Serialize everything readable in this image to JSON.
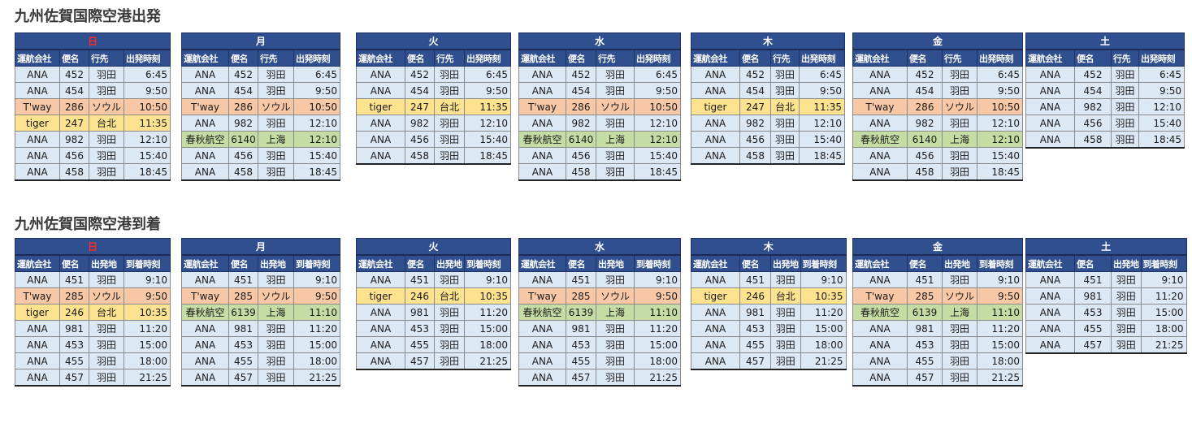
{
  "departures": {
    "title": "九州佐賀国際空港出発",
    "headers": [
      "運航会社",
      "便名",
      "行先",
      "出発時刻"
    ],
    "days": [
      {
        "day": "日",
        "sunday": true,
        "rows": [
          {
            "airline": "ANA",
            "flight": "452",
            "place": "羽田",
            "time": "6:45",
            "color": ""
          },
          {
            "airline": "ANA",
            "flight": "454",
            "place": "羽田",
            "time": "9:50",
            "color": ""
          },
          {
            "airline": "T'way",
            "flight": "286",
            "place": "ソウル",
            "time": "10:50",
            "color": "orange"
          },
          {
            "airline": "tiger",
            "flight": "247",
            "place": "台北",
            "time": "11:35",
            "color": "yellow"
          },
          {
            "airline": "ANA",
            "flight": "982",
            "place": "羽田",
            "time": "12:10",
            "color": ""
          },
          {
            "airline": "ANA",
            "flight": "456",
            "place": "羽田",
            "time": "15:40",
            "color": ""
          },
          {
            "airline": "ANA",
            "flight": "458",
            "place": "羽田",
            "time": "18:45",
            "color": ""
          }
        ]
      },
      {
        "day": "月",
        "rows": [
          {
            "airline": "ANA",
            "flight": "452",
            "place": "羽田",
            "time": "6:45",
            "color": ""
          },
          {
            "airline": "ANA",
            "flight": "454",
            "place": "羽田",
            "time": "9:50",
            "color": ""
          },
          {
            "airline": "T'way",
            "flight": "286",
            "place": "ソウル",
            "time": "10:50",
            "color": "orange"
          },
          {
            "airline": "ANA",
            "flight": "982",
            "place": "羽田",
            "time": "12:10",
            "color": ""
          },
          {
            "airline": "春秋航空",
            "flight": "6140",
            "place": "上海",
            "time": "12:10",
            "color": "green"
          },
          {
            "airline": "ANA",
            "flight": "456",
            "place": "羽田",
            "time": "15:40",
            "color": ""
          },
          {
            "airline": "ANA",
            "flight": "458",
            "place": "羽田",
            "time": "18:45",
            "color": ""
          }
        ]
      },
      {
        "day": "火",
        "rows": [
          {
            "airline": "ANA",
            "flight": "452",
            "place": "羽田",
            "time": "6:45",
            "color": ""
          },
          {
            "airline": "ANA",
            "flight": "454",
            "place": "羽田",
            "time": "9:50",
            "color": ""
          },
          {
            "airline": "tiger",
            "flight": "247",
            "place": "台北",
            "time": "11:35",
            "color": "yellow"
          },
          {
            "airline": "ANA",
            "flight": "982",
            "place": "羽田",
            "time": "12:10",
            "color": ""
          },
          {
            "airline": "ANA",
            "flight": "456",
            "place": "羽田",
            "time": "15:40",
            "color": ""
          },
          {
            "airline": "ANA",
            "flight": "458",
            "place": "羽田",
            "time": "18:45",
            "color": ""
          }
        ]
      },
      {
        "day": "水",
        "rows": [
          {
            "airline": "ANA",
            "flight": "452",
            "place": "羽田",
            "time": "6:45",
            "color": ""
          },
          {
            "airline": "ANA",
            "flight": "454",
            "place": "羽田",
            "time": "9:50",
            "color": ""
          },
          {
            "airline": "T'way",
            "flight": "286",
            "place": "ソウル",
            "time": "10:50",
            "color": "orange"
          },
          {
            "airline": "ANA",
            "flight": "982",
            "place": "羽田",
            "time": "12:10",
            "color": ""
          },
          {
            "airline": "春秋航空",
            "flight": "6140",
            "place": "上海",
            "time": "12:10",
            "color": "green"
          },
          {
            "airline": "ANA",
            "flight": "456",
            "place": "羽田",
            "time": "15:40",
            "color": ""
          },
          {
            "airline": "ANA",
            "flight": "458",
            "place": "羽田",
            "time": "18:45",
            "color": ""
          }
        ]
      },
      {
        "day": "木",
        "rows": [
          {
            "airline": "ANA",
            "flight": "452",
            "place": "羽田",
            "time": "6:45",
            "color": ""
          },
          {
            "airline": "ANA",
            "flight": "454",
            "place": "羽田",
            "time": "9:50",
            "color": ""
          },
          {
            "airline": "tiger",
            "flight": "247",
            "place": "台北",
            "time": "11:35",
            "color": "yellow"
          },
          {
            "airline": "ANA",
            "flight": "982",
            "place": "羽田",
            "time": "12:10",
            "color": ""
          },
          {
            "airline": "ANA",
            "flight": "456",
            "place": "羽田",
            "time": "15:40",
            "color": ""
          },
          {
            "airline": "ANA",
            "flight": "458",
            "place": "羽田",
            "time": "18:45",
            "color": ""
          }
        ]
      },
      {
        "day": "金",
        "rows": [
          {
            "airline": "ANA",
            "flight": "452",
            "place": "羽田",
            "time": "6:45",
            "color": ""
          },
          {
            "airline": "ANA",
            "flight": "454",
            "place": "羽田",
            "time": "9:50",
            "color": ""
          },
          {
            "airline": "T'way",
            "flight": "286",
            "place": "ソウル",
            "time": "10:50",
            "color": "orange"
          },
          {
            "airline": "ANA",
            "flight": "982",
            "place": "羽田",
            "time": "12:10",
            "color": ""
          },
          {
            "airline": "春秋航空",
            "flight": "6140",
            "place": "上海",
            "time": "12:10",
            "color": "green"
          },
          {
            "airline": "ANA",
            "flight": "456",
            "place": "羽田",
            "time": "15:40",
            "color": ""
          },
          {
            "airline": "ANA",
            "flight": "458",
            "place": "羽田",
            "time": "18:45",
            "color": ""
          }
        ]
      },
      {
        "day": "土",
        "rows": [
          {
            "airline": "ANA",
            "flight": "452",
            "place": "羽田",
            "time": "6:45",
            "color": ""
          },
          {
            "airline": "ANA",
            "flight": "454",
            "place": "羽田",
            "time": "9:50",
            "color": ""
          },
          {
            "airline": "ANA",
            "flight": "982",
            "place": "羽田",
            "time": "12:10",
            "color": ""
          },
          {
            "airline": "ANA",
            "flight": "456",
            "place": "羽田",
            "time": "15:40",
            "color": ""
          },
          {
            "airline": "ANA",
            "flight": "458",
            "place": "羽田",
            "time": "18:45",
            "color": ""
          }
        ]
      }
    ]
  },
  "arrivals": {
    "title": "九州佐賀国際空港到着",
    "headers": [
      "運航会社",
      "便名",
      "出発地",
      "到着時刻"
    ],
    "days": [
      {
        "day": "日",
        "sunday": true,
        "rows": [
          {
            "airline": "ANA",
            "flight": "451",
            "place": "羽田",
            "time": "9:10",
            "color": ""
          },
          {
            "airline": "T'way",
            "flight": "285",
            "place": "ソウル",
            "time": "9:50",
            "color": "orange"
          },
          {
            "airline": "tiger",
            "flight": "246",
            "place": "台北",
            "time": "10:35",
            "color": "yellow"
          },
          {
            "airline": "ANA",
            "flight": "981",
            "place": "羽田",
            "time": "11:20",
            "color": ""
          },
          {
            "airline": "ANA",
            "flight": "453",
            "place": "羽田",
            "time": "15:00",
            "color": ""
          },
          {
            "airline": "ANA",
            "flight": "455",
            "place": "羽田",
            "time": "18:00",
            "color": ""
          },
          {
            "airline": "ANA",
            "flight": "457",
            "place": "羽田",
            "time": "21:25",
            "color": ""
          }
        ]
      },
      {
        "day": "月",
        "rows": [
          {
            "airline": "ANA",
            "flight": "451",
            "place": "羽田",
            "time": "9:10",
            "color": ""
          },
          {
            "airline": "T'way",
            "flight": "285",
            "place": "ソウル",
            "time": "9:50",
            "color": "orange"
          },
          {
            "airline": "春秋航空",
            "flight": "6139",
            "place": "上海",
            "time": "11:10",
            "color": "green"
          },
          {
            "airline": "ANA",
            "flight": "981",
            "place": "羽田",
            "time": "11:20",
            "color": ""
          },
          {
            "airline": "ANA",
            "flight": "453",
            "place": "羽田",
            "time": "15:00",
            "color": ""
          },
          {
            "airline": "ANA",
            "flight": "455",
            "place": "羽田",
            "time": "18:00",
            "color": ""
          },
          {
            "airline": "ANA",
            "flight": "457",
            "place": "羽田",
            "time": "21:25",
            "color": ""
          }
        ]
      },
      {
        "day": "火",
        "rows": [
          {
            "airline": "ANA",
            "flight": "451",
            "place": "羽田",
            "time": "9:10",
            "color": ""
          },
          {
            "airline": "tiger",
            "flight": "246",
            "place": "台北",
            "time": "10:35",
            "color": "yellow"
          },
          {
            "airline": "ANA",
            "flight": "981",
            "place": "羽田",
            "time": "11:20",
            "color": ""
          },
          {
            "airline": "ANA",
            "flight": "453",
            "place": "羽田",
            "time": "15:00",
            "color": ""
          },
          {
            "airline": "ANA",
            "flight": "455",
            "place": "羽田",
            "time": "18:00",
            "color": ""
          },
          {
            "airline": "ANA",
            "flight": "457",
            "place": "羽田",
            "time": "21:25",
            "color": ""
          }
        ]
      },
      {
        "day": "水",
        "rows": [
          {
            "airline": "ANA",
            "flight": "451",
            "place": "羽田",
            "time": "9:10",
            "color": ""
          },
          {
            "airline": "T'way",
            "flight": "285",
            "place": "ソウル",
            "time": "9:50",
            "color": "orange"
          },
          {
            "airline": "春秋航空",
            "flight": "6139",
            "place": "上海",
            "time": "11:10",
            "color": "green"
          },
          {
            "airline": "ANA",
            "flight": "981",
            "place": "羽田",
            "time": "11:20",
            "color": ""
          },
          {
            "airline": "ANA",
            "flight": "453",
            "place": "羽田",
            "time": "15:00",
            "color": ""
          },
          {
            "airline": "ANA",
            "flight": "455",
            "place": "羽田",
            "time": "18:00",
            "color": ""
          },
          {
            "airline": "ANA",
            "flight": "457",
            "place": "羽田",
            "time": "21:25",
            "color": ""
          }
        ]
      },
      {
        "day": "木",
        "rows": [
          {
            "airline": "ANA",
            "flight": "451",
            "place": "羽田",
            "time": "9:10",
            "color": ""
          },
          {
            "airline": "tiger",
            "flight": "246",
            "place": "台北",
            "time": "10:35",
            "color": "yellow"
          },
          {
            "airline": "ANA",
            "flight": "981",
            "place": "羽田",
            "time": "11:20",
            "color": ""
          },
          {
            "airline": "ANA",
            "flight": "453",
            "place": "羽田",
            "time": "15:00",
            "color": ""
          },
          {
            "airline": "ANA",
            "flight": "455",
            "place": "羽田",
            "time": "18:00",
            "color": ""
          },
          {
            "airline": "ANA",
            "flight": "457",
            "place": "羽田",
            "time": "21:25",
            "color": ""
          }
        ]
      },
      {
        "day": "金",
        "rows": [
          {
            "airline": "ANA",
            "flight": "451",
            "place": "羽田",
            "time": "9:10",
            "color": ""
          },
          {
            "airline": "T'way",
            "flight": "285",
            "place": "ソウル",
            "time": "9:50",
            "color": "orange"
          },
          {
            "airline": "春秋航空",
            "flight": "6139",
            "place": "上海",
            "time": "11:10",
            "color": "green"
          },
          {
            "airline": "ANA",
            "flight": "981",
            "place": "羽田",
            "time": "11:20",
            "color": ""
          },
          {
            "airline": "ANA",
            "flight": "453",
            "place": "羽田",
            "time": "15:00",
            "color": ""
          },
          {
            "airline": "ANA",
            "flight": "455",
            "place": "羽田",
            "time": "18:00",
            "color": ""
          },
          {
            "airline": "ANA",
            "flight": "457",
            "place": "羽田",
            "time": "21:25",
            "color": ""
          }
        ]
      },
      {
        "day": "土",
        "rows": [
          {
            "airline": "ANA",
            "flight": "451",
            "place": "羽田",
            "time": "9:10",
            "color": ""
          },
          {
            "airline": "ANA",
            "flight": "981",
            "place": "羽田",
            "time": "11:20",
            "color": ""
          },
          {
            "airline": "ANA",
            "flight": "453",
            "place": "羽田",
            "time": "15:00",
            "color": ""
          },
          {
            "airline": "ANA",
            "flight": "455",
            "place": "羽田",
            "time": "18:00",
            "color": ""
          },
          {
            "airline": "ANA",
            "flight": "457",
            "place": "羽田",
            "time": "21:25",
            "color": ""
          }
        ]
      }
    ]
  }
}
